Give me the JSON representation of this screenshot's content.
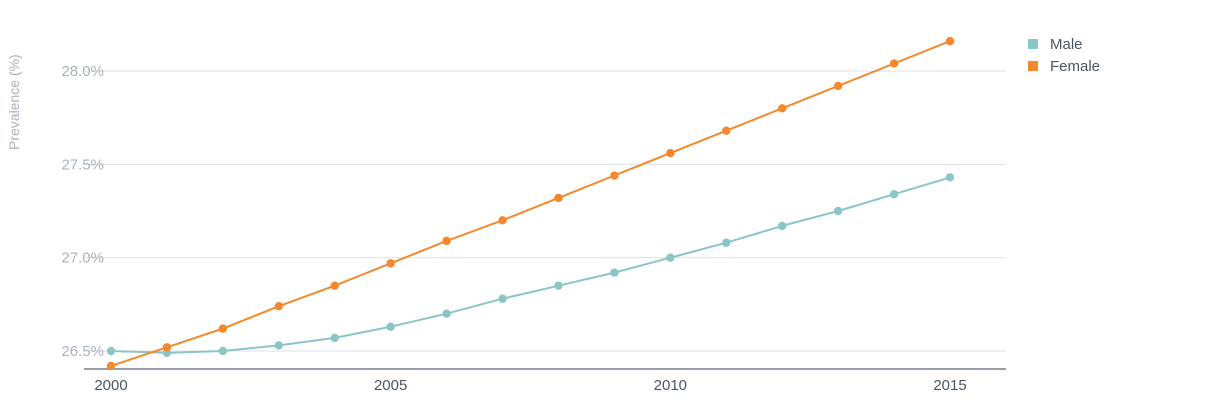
{
  "chart_data": {
    "type": "line",
    "title": "",
    "xlabel": "",
    "ylabel": "Prevalence (%)",
    "x": [
      2000,
      2001,
      2002,
      2003,
      2004,
      2005,
      2006,
      2007,
      2008,
      2009,
      2010,
      2011,
      2012,
      2013,
      2014,
      2015
    ],
    "xticks": [
      "2000",
      "2005",
      "2010",
      "2015"
    ],
    "yticks": [
      "26.5%",
      "27.0%",
      "27.5%",
      "28.0%"
    ],
    "ylim": [
      26.42,
      28.23
    ],
    "grid": true,
    "legend_position": "right",
    "series": [
      {
        "name": "Male",
        "color": "#8ac6c6",
        "values": [
          26.5,
          26.49,
          26.5,
          26.53,
          26.57,
          26.63,
          26.7,
          26.78,
          26.85,
          26.92,
          27.0,
          27.08,
          27.17,
          27.25,
          27.34,
          27.43
        ]
      },
      {
        "name": "Female",
        "color": "#f5882a",
        "values": [
          26.42,
          26.52,
          26.62,
          26.74,
          26.85,
          26.97,
          27.09,
          27.2,
          27.32,
          27.44,
          27.56,
          27.68,
          27.8,
          27.92,
          28.04,
          28.16
        ]
      }
    ]
  }
}
